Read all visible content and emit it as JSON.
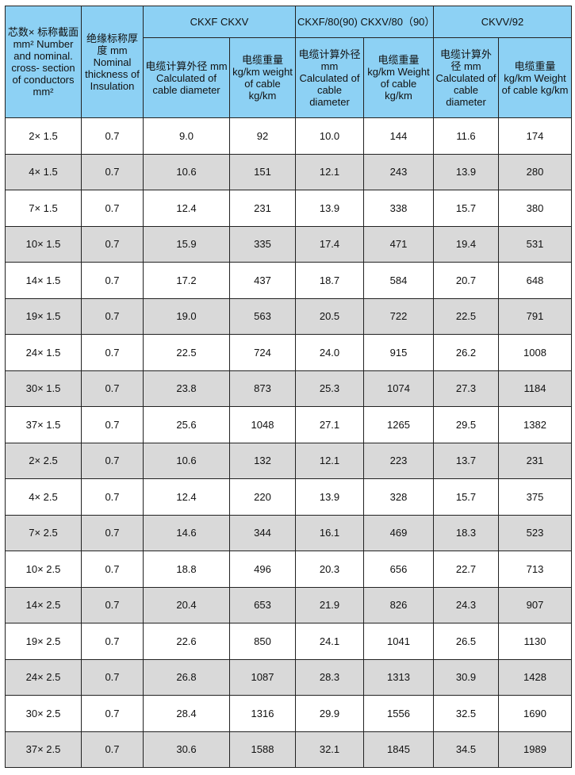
{
  "header": {
    "col_conductors": "芯数× 标称截面 mm² Number and nominal. cross- section of conductors mm²",
    "col_insulation": "绝缘标称厚度 mm Nominal thickness of Insulation",
    "groups": [
      "CKXF CKXV",
      "CKXF/80(90) CKXV/80（90）",
      "CKVV/92"
    ],
    "sub": [
      "电缆计算外径 mm Calculated of cable diameter",
      "电缆重量 kg/km weight of cable kg/km",
      "电缆计算外径 mm Calculated of cable diameter",
      "电缆重量 kg/km Weight of cable kg/km",
      "电缆计算外径 mm Calculated of cable diameter",
      "电缆重量 kg/km Weight of cable kg/km"
    ]
  },
  "rows": [
    [
      "2× 1.5",
      "0.7",
      "9.0",
      "92",
      "10.0",
      "144",
      "11.6",
      "174"
    ],
    [
      "4× 1.5",
      "0.7",
      "10.6",
      "151",
      "12.1",
      "243",
      "13.9",
      "280"
    ],
    [
      "7× 1.5",
      "0.7",
      "12.4",
      "231",
      "13.9",
      "338",
      "15.7",
      "380"
    ],
    [
      "10× 1.5",
      "0.7",
      "15.9",
      "335",
      "17.4",
      "471",
      "19.4",
      "531"
    ],
    [
      "14× 1.5",
      "0.7",
      "17.2",
      "437",
      "18.7",
      "584",
      "20.7",
      "648"
    ],
    [
      "19× 1.5",
      "0.7",
      "19.0",
      "563",
      "20.5",
      "722",
      "22.5",
      "791"
    ],
    [
      "24× 1.5",
      "0.7",
      "22.5",
      "724",
      "24.0",
      "915",
      "26.2",
      "1008"
    ],
    [
      "30× 1.5",
      "0.7",
      "23.8",
      "873",
      "25.3",
      "1074",
      "27.3",
      "1184"
    ],
    [
      "37× 1.5",
      "0.7",
      "25.6",
      "1048",
      "27.1",
      "1265",
      "29.5",
      "1382"
    ],
    [
      "2× 2.5",
      "0.7",
      "10.6",
      "132",
      "12.1",
      "223",
      "13.7",
      "231"
    ],
    [
      "4× 2.5",
      "0.7",
      "12.4",
      "220",
      "13.9",
      "328",
      "15.7",
      "375"
    ],
    [
      "7× 2.5",
      "0.7",
      "14.6",
      "344",
      "16.1",
      "469",
      "18.3",
      "523"
    ],
    [
      "10× 2.5",
      "0.7",
      "18.8",
      "496",
      "20.3",
      "656",
      "22.7",
      "713"
    ],
    [
      "14× 2.5",
      "0.7",
      "20.4",
      "653",
      "21.9",
      "826",
      "24.3",
      "907"
    ],
    [
      "19× 2.5",
      "0.7",
      "22.6",
      "850",
      "24.1",
      "1041",
      "26.5",
      "1130"
    ],
    [
      "24× 2.5",
      "0.7",
      "26.8",
      "1087",
      "28.3",
      "1313",
      "30.9",
      "1428"
    ],
    [
      "30× 2.5",
      "0.7",
      "28.4",
      "1316",
      "29.9",
      "1556",
      "32.5",
      "1690"
    ],
    [
      "37× 2.5",
      "0.7",
      "30.6",
      "1588",
      "32.1",
      "1845",
      "34.5",
      "1989"
    ]
  ],
  "colors": {
    "header": "#8dd1f4",
    "alt_row": "#d9d9d9"
  }
}
